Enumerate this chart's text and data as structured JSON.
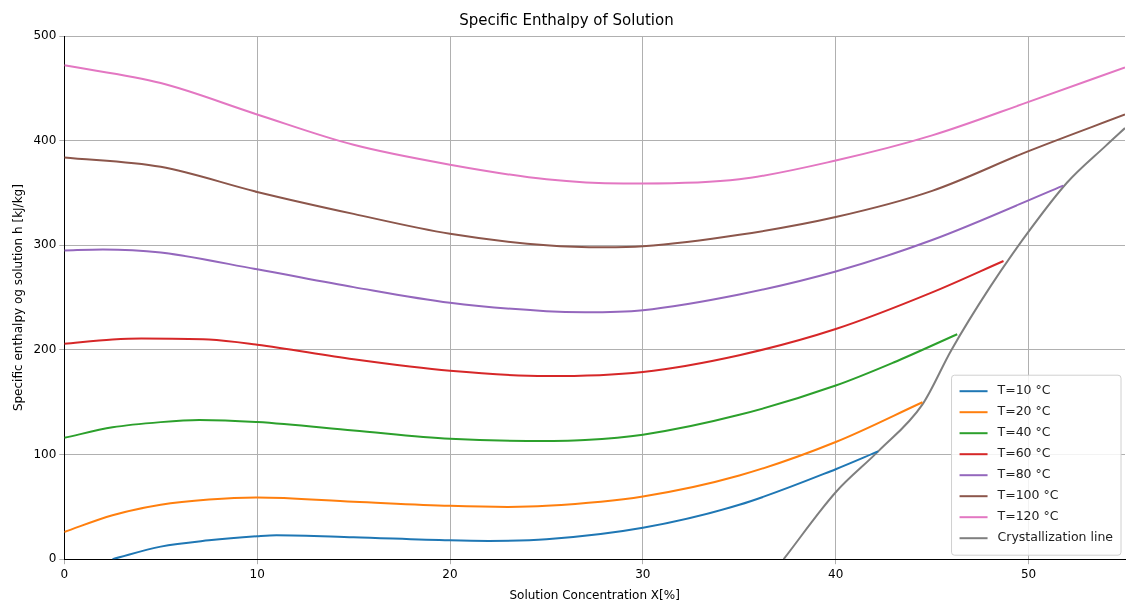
{
  "chart_data": {
    "type": "line",
    "title": "Specific Enthalpy of Solution",
    "xlabel": "Solution Concentration X[%]",
    "ylabel": "Specific enthalpy og solution h [kJ/kg]",
    "xlim": [
      0,
      55
    ],
    "ylim": [
      0,
      500
    ],
    "xticks": [
      0,
      10,
      20,
      30,
      40,
      50
    ],
    "yticks": [
      0,
      100,
      200,
      300,
      400,
      500
    ],
    "grid": true,
    "legend": "bottom right",
    "line_style": "solid",
    "marker": "none",
    "series": [
      {
        "name": "T=10 °C",
        "color": "#1f77b4",
        "x": [
          2.5,
          5,
          7.5,
          10,
          11,
          15,
          20,
          22,
          25,
          30,
          35,
          40,
          42.2
        ],
        "values": [
          0,
          12,
          18,
          22,
          23,
          21,
          18,
          17.5,
          19,
          30,
          52,
          86,
          103
        ]
      },
      {
        "name": "T=20 °C",
        "color": "#ff7f0e",
        "x": [
          0,
          2.5,
          5,
          7.5,
          10,
          15,
          20,
          23,
          25,
          30,
          35,
          40,
          44.5
        ],
        "values": [
          26,
          42,
          52,
          57,
          59,
          55,
          51,
          50,
          51,
          60,
          80,
          112,
          150
        ]
      },
      {
        "name": "T=40 °C",
        "color": "#2ca02c",
        "x": [
          0,
          2.5,
          5,
          7,
          10,
          15,
          20,
          24,
          27,
          30,
          35,
          40,
          43,
          46.3
        ],
        "values": [
          116,
          126,
          131,
          133,
          131,
          123,
          115,
          113,
          114,
          119,
          138,
          166,
          188,
          215
        ]
      },
      {
        "name": "T=60 °C",
        "color": "#d62728",
        "x": [
          0,
          2.5,
          4,
          7.5,
          10,
          15,
          20,
          25,
          30,
          35,
          40,
          45,
          48.7
        ],
        "values": [
          206,
          210,
          211,
          210,
          205,
          191,
          180,
          175,
          179,
          195,
          220,
          255,
          285
        ]
      },
      {
        "name": "T=80 °C",
        "color": "#9467bd",
        "x": [
          0,
          2,
          5,
          10,
          15,
          20,
          25,
          27,
          30,
          35,
          40,
          45,
          51.8
        ],
        "values": [
          295,
          296,
          293,
          277,
          260,
          245,
          237,
          236,
          238,
          253,
          275,
          305,
          357
        ]
      },
      {
        "name": "T=100 °C",
        "color": "#8c564b",
        "x": [
          0,
          5,
          10,
          15,
          20,
          25,
          28,
          30,
          35,
          40,
          45,
          50,
          55
        ],
        "values": [
          384,
          375,
          351,
          330,
          311,
          300,
          298,
          299,
          310,
          327,
          352,
          390,
          425
        ]
      },
      {
        "name": "T=120 °C",
        "color": "#e377c2",
        "x": [
          0,
          5,
          10,
          15,
          20,
          25,
          29,
          30,
          35,
          40,
          45,
          50,
          55
        ],
        "values": [
          472,
          455,
          425,
          396,
          377,
          363,
          359,
          359,
          363,
          381,
          405,
          437,
          470
        ]
      },
      {
        "name": "Crystallization line",
        "color": "#7f7f7f",
        "x": [
          37.3,
          40,
          42.2,
          44.5,
          46,
          48,
          50,
          52,
          54,
          55
        ],
        "values": [
          0,
          64,
          103,
          148,
          200,
          260,
          313,
          360,
          395,
          412
        ]
      }
    ]
  }
}
